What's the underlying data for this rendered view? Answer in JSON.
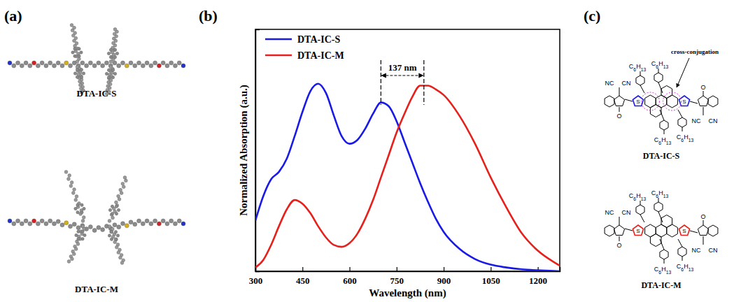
{
  "chart_data": {
    "type": "line",
    "x_label": "Wavelength (nm)",
    "y_label": "Normalized Absorption (a.u.)",
    "x": [
      300,
      325,
      350,
      375,
      400,
      425,
      450,
      475,
      500,
      525,
      550,
      575,
      600,
      625,
      650,
      675,
      700,
      725,
      750,
      775,
      800,
      825,
      850,
      875,
      900,
      950,
      1000,
      1050,
      1100,
      1150,
      1200,
      1250,
      1270
    ],
    "series": [
      {
        "name": "DTA-IC-S",
        "color": "#1a1ae6",
        "values": [
          0.27,
          0.4,
          0.49,
          0.53,
          0.6,
          0.72,
          0.85,
          0.96,
          1.0,
          0.95,
          0.83,
          0.72,
          0.68,
          0.7,
          0.76,
          0.84,
          0.9,
          0.88,
          0.8,
          0.69,
          0.58,
          0.47,
          0.37,
          0.28,
          0.21,
          0.12,
          0.065,
          0.035,
          0.02,
          0.01,
          0.005,
          0.002,
          0.0
        ]
      },
      {
        "name": "DTA-IC-M",
        "color": "#e6201a",
        "values": [
          0.02,
          0.06,
          0.14,
          0.24,
          0.33,
          0.38,
          0.36,
          0.31,
          0.24,
          0.18,
          0.14,
          0.13,
          0.15,
          0.2,
          0.28,
          0.38,
          0.5,
          0.62,
          0.74,
          0.84,
          0.93,
          0.99,
          0.99,
          0.97,
          0.94,
          0.83,
          0.68,
          0.5,
          0.34,
          0.2,
          0.11,
          0.05,
          0.03
        ]
      }
    ],
    "xlim": [
      300,
      1270
    ],
    "xticks": [
      300,
      450,
      600,
      750,
      900,
      1050,
      1200
    ],
    "ylim": [
      0,
      1.29
    ],
    "yticks": [],
    "tick_labels": "x",
    "legend": "upper left",
    "annotations": [
      {
        "text": "137 nm",
        "x1": 700,
        "x2": 837
      }
    ]
  },
  "figure": {
    "panel_labels": [
      "(a)",
      "(b)",
      "(c)"
    ],
    "panel_a": {
      "captions": [
        "DTA-IC-S",
        "DTA-IC-M"
      ]
    },
    "panel_c": {
      "molecules": [
        {
          "caption": "DTA-IC-S",
          "annotation": "cross-conjugation",
          "atom_labels": [
            "C6H13",
            "C6H13",
            "C6H13",
            "C6H13",
            "S",
            "S",
            "O",
            "O",
            "CN",
            "NC",
            "NC",
            "CN"
          ]
        },
        {
          "caption": "DTA-IC-M",
          "atom_labels": [
            "C6H13",
            "C6H13",
            "C6H13",
            "C6H13",
            "S",
            "S",
            "O",
            "O",
            "CN",
            "NC",
            "NC",
            "CN"
          ]
        }
      ]
    }
  }
}
